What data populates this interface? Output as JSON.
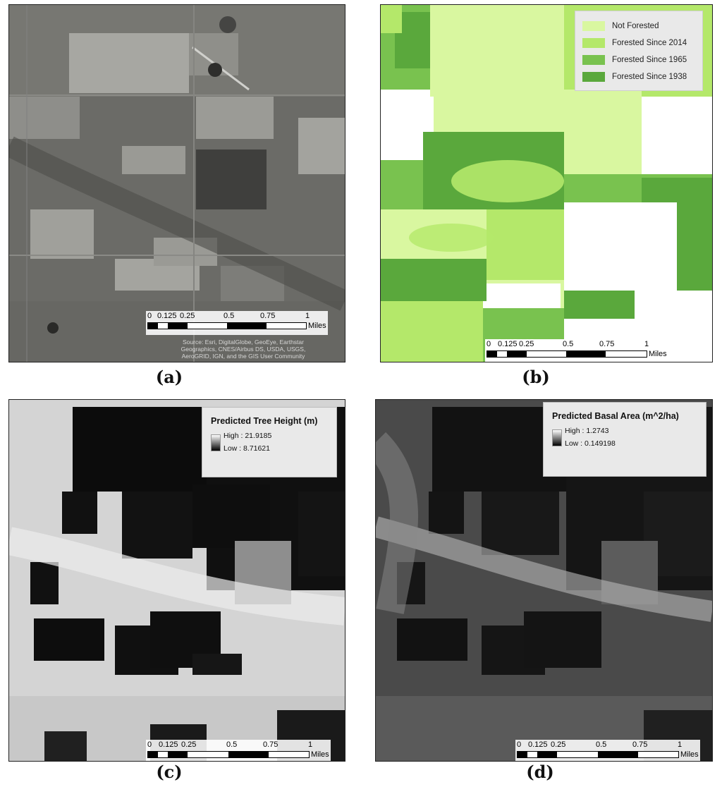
{
  "panels": {
    "a": {
      "caption": "(a)",
      "scale": {
        "ticks": [
          "0",
          "0.125",
          "0.25",
          "0.5",
          "0.75",
          "1"
        ],
        "unit": "Miles"
      },
      "credit": "Source: Esri, DigitalGlobe, GeoEye, Earthstar Geographics, CNES/Airbus DS, USDA, USGS, AeroGRID, IGN, and the GIS User Community"
    },
    "b": {
      "caption": "(b)",
      "legend": [
        {
          "label": "Not Forested",
          "color": "#d9f7a0"
        },
        {
          "label": "Forested Since 2014",
          "color": "#b4e86a"
        },
        {
          "label": "Forested Since 1965",
          "color": "#79c24f"
        },
        {
          "label": "Forested Since 1938",
          "color": "#5aa83c"
        }
      ],
      "scale": {
        "ticks": [
          "0",
          "0.125",
          "0.25",
          "0.5",
          "0.75",
          "1"
        ],
        "unit": "Miles"
      }
    },
    "c": {
      "caption": "(c)",
      "legend": {
        "title": "Predicted Tree Height (m)",
        "high": "High : 21.9185",
        "low": "Low : 8.71621"
      },
      "scale": {
        "ticks": [
          "0",
          "0.125",
          "0.25",
          "0.5",
          "0.75",
          "1"
        ],
        "unit": "Miles"
      }
    },
    "d": {
      "caption": "(d)",
      "legend": {
        "title": "Predicted Basal Area (m^2/ha)",
        "high": "High : 1.2743",
        "low": "Low : 0.149198"
      },
      "scale": {
        "ticks": [
          "0",
          "0.125",
          "0.25",
          "0.5",
          "0.75",
          "1"
        ],
        "unit": "Miles"
      }
    }
  }
}
